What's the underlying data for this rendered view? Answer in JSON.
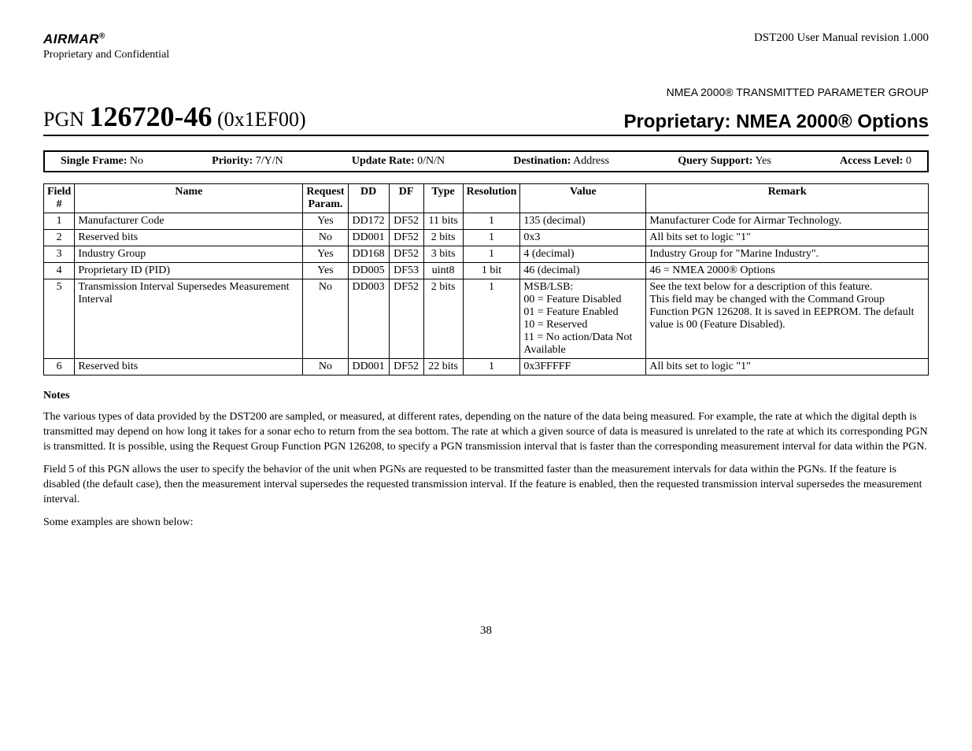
{
  "header": {
    "brand": "AIRMAR",
    "brand_reg": "®",
    "confidential": "Proprietary and Confidential",
    "revision": "DST200 User Manual revision 1.000"
  },
  "title": {
    "group_label": "NMEA 2000® TRANSMITTED PARAMETER GROUP",
    "pgn_prefix": "PGN ",
    "pgn_number": "126720-46",
    "pgn_hex": " (0x1EF00)",
    "proprietary": "Proprietary: NMEA 2000® Options"
  },
  "summary": {
    "single_frame_label": "Single Frame:",
    "single_frame_value": " No",
    "priority_label": "Priority:",
    "priority_value": " 7/Y/N",
    "update_label": "Update Rate:",
    "update_value": " 0/N/N",
    "dest_label": "Destination:",
    "dest_value": " Address",
    "query_label": "Query Support:",
    "query_value": " Yes",
    "access_label": "Access Level:",
    "access_value": " 0"
  },
  "columns": {
    "field": "Field #",
    "name": "Name",
    "req": "Request Param.",
    "dd": "DD",
    "df": "DF",
    "type": "Type",
    "res": "Resolution",
    "value": "Value",
    "remark": "Remark"
  },
  "rows": [
    {
      "n": "1",
      "name": "Manufacturer Code",
      "req": "Yes",
      "dd": "DD172",
      "df": "DF52",
      "type": "11 bits",
      "res": "1",
      "value": "135 (decimal)",
      "remark": "Manufacturer Code for Airmar Technology."
    },
    {
      "n": "2",
      "name": "Reserved bits",
      "req": "No",
      "dd": "DD001",
      "df": "DF52",
      "type": "2 bits",
      "res": "1",
      "value": "0x3",
      "remark": "All bits set to logic \"1\""
    },
    {
      "n": "3",
      "name": "Industry Group",
      "req": "Yes",
      "dd": "DD168",
      "df": "DF52",
      "type": "3 bits",
      "res": "1",
      "value": "4 (decimal)",
      "remark": "Industry Group for \"Marine Industry\"."
    },
    {
      "n": "4",
      "name": "Proprietary ID (PID)",
      "req": "Yes",
      "dd": "DD005",
      "df": "DF53",
      "type": "uint8",
      "res": "1 bit",
      "value": "46 (decimal)",
      "remark": "46 = NMEA 2000® Options"
    },
    {
      "n": "5",
      "name": "Transmission Interval Supersedes Measurement Interval",
      "req": "No",
      "dd": "DD003",
      "df": "DF52",
      "type": "2 bits",
      "res": "1",
      "value": "MSB/LSB:\n00 = Feature Disabled\n01 = Feature Enabled\n10 = Reserved\n11 = No action/Data Not Available",
      "remark": "See the text below for a description of this feature.\nThis field may be changed with the Command Group Function PGN 126208.  It is saved in EEPROM.  The default value is 00 (Feature Disabled)."
    },
    {
      "n": "6",
      "name": "Reserved bits",
      "req": "No",
      "dd": "DD001",
      "df": "DF52",
      "type": "22 bits",
      "res": "1",
      "value": "0x3FFFFF",
      "remark": "All bits set to logic \"1\""
    }
  ],
  "notes": {
    "heading": "Notes",
    "p1": "The various types of data provided by the DST200 are sampled, or measured, at different rates, depending on the nature of the data being measured.  For example, the rate at which the digital depth is transmitted may depend on how long it takes for a sonar echo to return from the sea bottom.  The rate at which a given source of data is measured is unrelated to the rate at which its corresponding PGN is transmitted.  It is possible, using the Request Group Function PGN 126208, to specify a PGN transmission interval that is faster than the corresponding measurement interval for data within the PGN.",
    "p2": "Field 5 of this PGN allows the user to specify the behavior of the unit when PGNs are requested to be transmitted faster than the measurement intervals for data within the PGNs.  If the feature is disabled (the default case), then the measurement interval supersedes the requested transmission interval.  If the feature is enabled, then the requested transmission interval supersedes the measurement interval.",
    "p3": "Some examples are shown below:"
  },
  "page_number": "38"
}
